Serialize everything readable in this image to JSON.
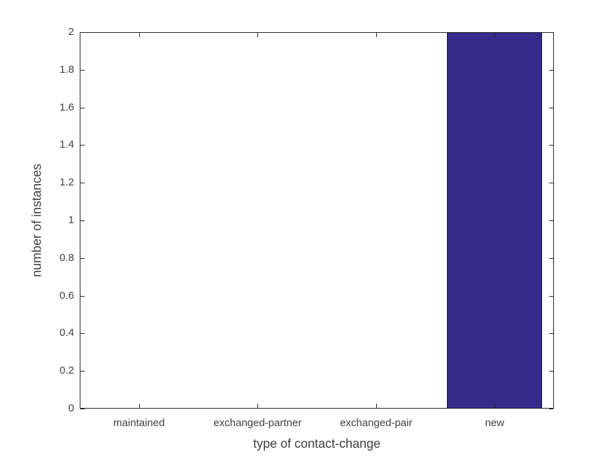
{
  "figure": {
    "background": "#ffffff"
  },
  "chart_data": {
    "type": "bar",
    "title": "",
    "xlabel": "type of contact-change",
    "ylabel": "number of instances",
    "categories": [
      "maintained",
      "exchanged-partner",
      "exchanged-pair",
      "new"
    ],
    "values": [
      0,
      0,
      0,
      2
    ],
    "ylim": [
      0,
      2
    ],
    "yticks": [
      0,
      0.2,
      0.4,
      0.6,
      0.8,
      1,
      1.2,
      1.4,
      1.6,
      1.8,
      2
    ],
    "ytick_labels": [
      "0",
      "0.2",
      "0.4",
      "0.6",
      "0.8",
      "1",
      "1.2",
      "1.4",
      "1.6",
      "1.8",
      "2"
    ],
    "bar_color": "#352d8c",
    "bar_edge_color": "#1a1a1a",
    "axis_color": "#262626",
    "text_color": "#3f3f3f",
    "bar_width_fraction": 0.8,
    "grid": false,
    "box": true,
    "tick_direction": "in"
  }
}
